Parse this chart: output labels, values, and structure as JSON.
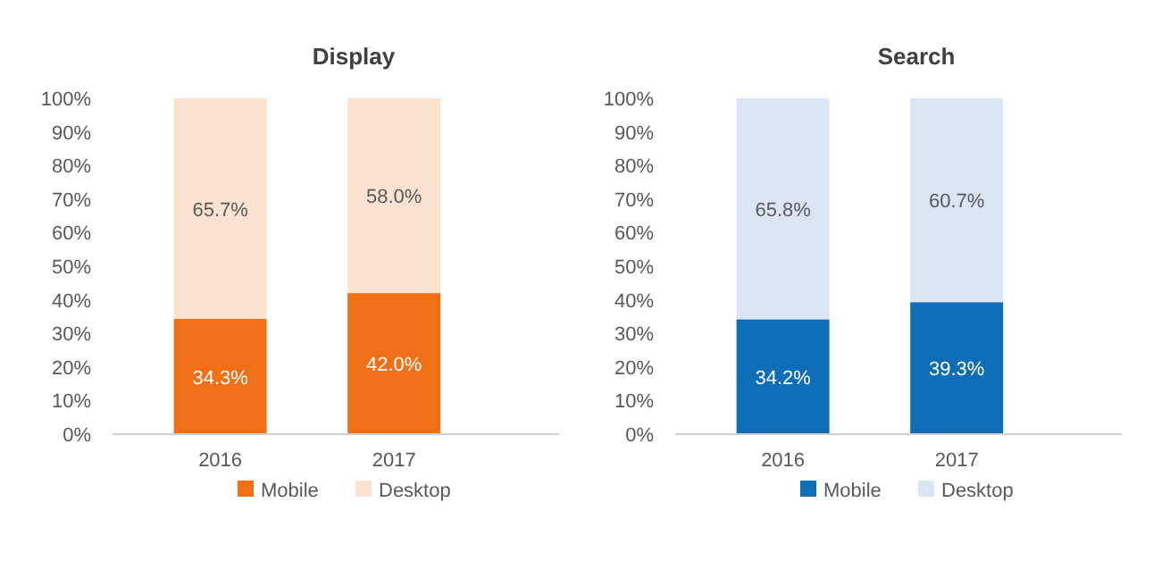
{
  "chart_data": [
    {
      "type": "bar",
      "title": "Display",
      "categories": [
        "2016",
        "2017"
      ],
      "stacked": true,
      "legend": "bottom",
      "grid": false,
      "ylim": [
        0,
        100
      ],
      "yticks": [
        {
          "value": 0,
          "label": "0%"
        },
        {
          "value": 10,
          "label": "10%"
        },
        {
          "value": 20,
          "label": "20%"
        },
        {
          "value": 30,
          "label": "30%"
        },
        {
          "value": 40,
          "label": "40%"
        },
        {
          "value": 50,
          "label": "50%"
        },
        {
          "value": 60,
          "label": "60%"
        },
        {
          "value": 70,
          "label": "70%"
        },
        {
          "value": 80,
          "label": "80%"
        },
        {
          "value": 90,
          "label": "90%"
        },
        {
          "value": 100,
          "label": "100%"
        }
      ],
      "series": [
        {
          "name": "Mobile",
          "color": "#f07018",
          "values": [
            34.3,
            42.0
          ],
          "value_labels": [
            "34.3%",
            "42.0%"
          ]
        },
        {
          "name": "Desktop",
          "color": "#fce3d1",
          "values": [
            65.7,
            58.0
          ],
          "value_labels": [
            "65.7%",
            "58.0%"
          ]
        }
      ]
    },
    {
      "type": "bar",
      "title": "Search",
      "categories": [
        "2016",
        "2017"
      ],
      "stacked": true,
      "legend": "bottom",
      "grid": false,
      "ylim": [
        0,
        100
      ],
      "yticks": [
        {
          "value": 0,
          "label": "0%"
        },
        {
          "value": 10,
          "label": "10%"
        },
        {
          "value": 20,
          "label": "20%"
        },
        {
          "value": 30,
          "label": "30%"
        },
        {
          "value": 40,
          "label": "40%"
        },
        {
          "value": 50,
          "label": "50%"
        },
        {
          "value": 60,
          "label": "60%"
        },
        {
          "value": 70,
          "label": "70%"
        },
        {
          "value": 80,
          "label": "80%"
        },
        {
          "value": 90,
          "label": "90%"
        },
        {
          "value": 100,
          "label": "100%"
        }
      ],
      "series": [
        {
          "name": "Mobile",
          "color": "#0f6cb6",
          "values": [
            34.2,
            39.3
          ],
          "value_labels": [
            "34.2%",
            "39.3%"
          ]
        },
        {
          "name": "Desktop",
          "color": "#dbe5f4",
          "values": [
            65.8,
            60.7
          ],
          "value_labels": [
            "65.8%",
            "60.7%"
          ]
        }
      ]
    }
  ]
}
